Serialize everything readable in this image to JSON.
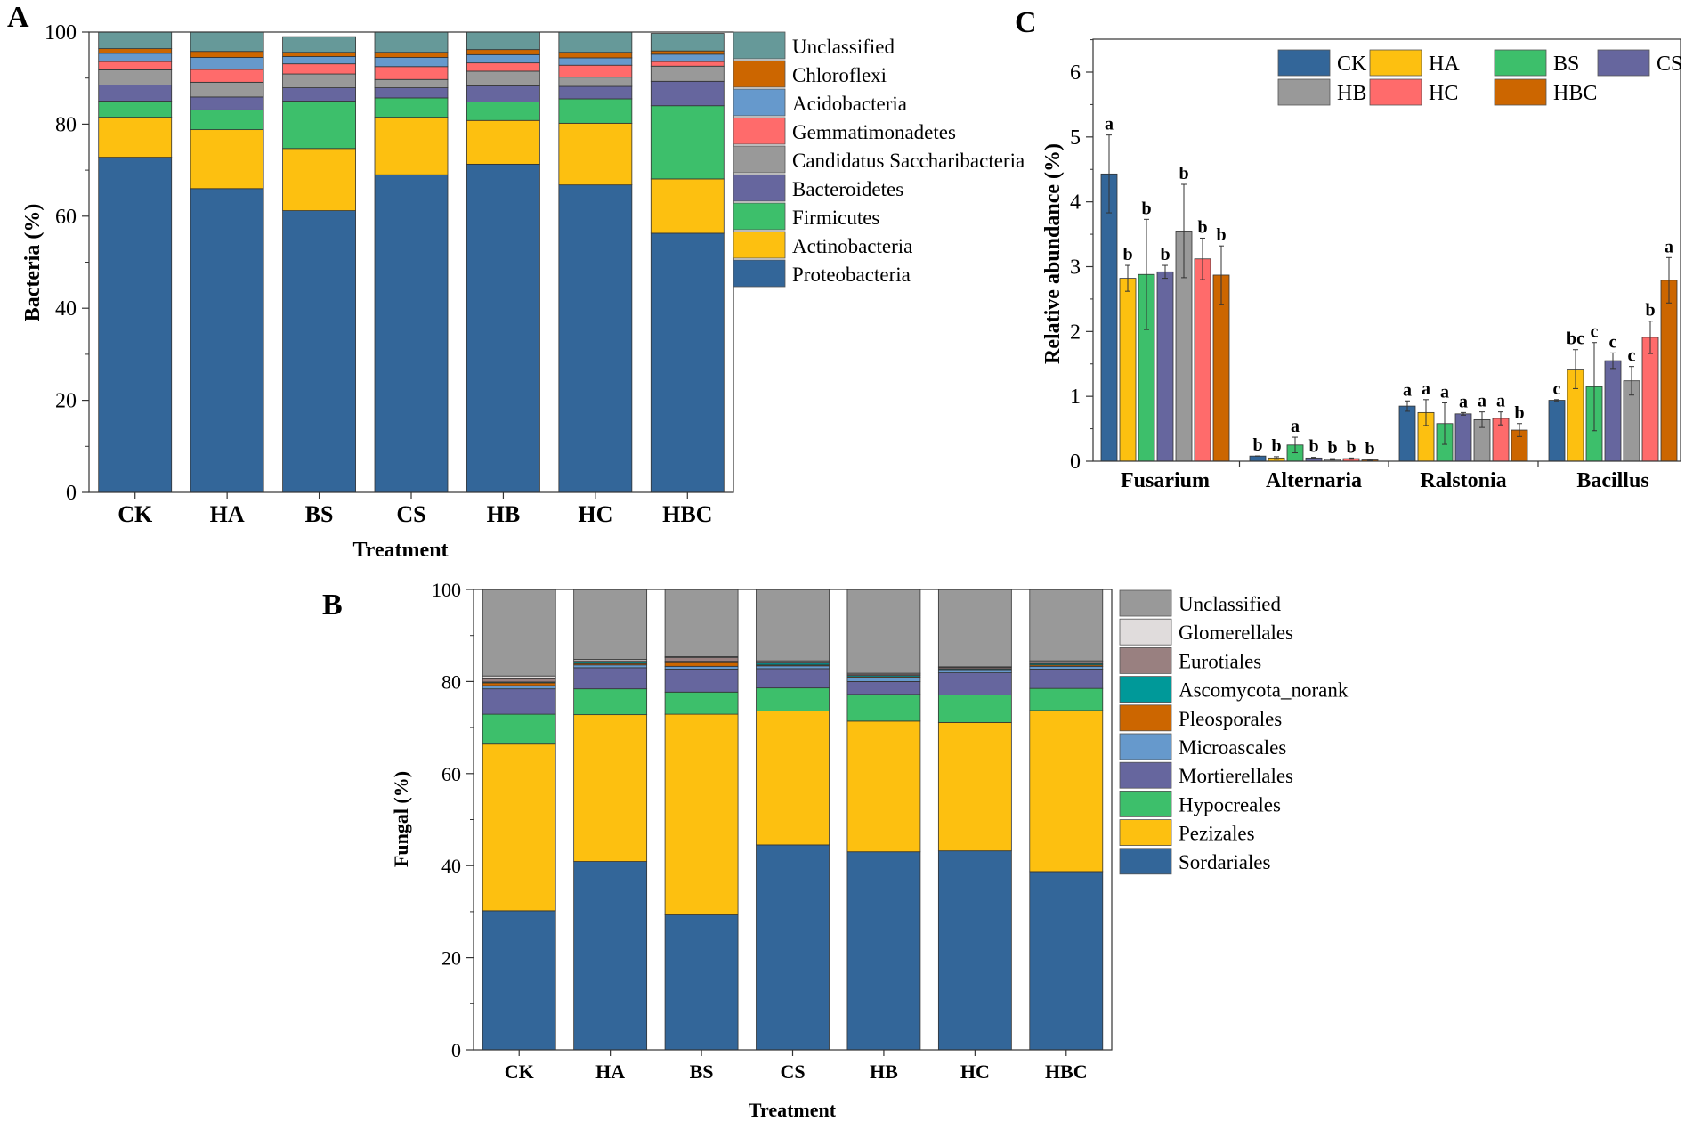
{
  "panels": {
    "A": {
      "letter": "A",
      "ylabel": "Bacteria (%)",
      "xlabel": "Treatment",
      "categories": [
        "CK",
        "HA",
        "BS",
        "CS",
        "HB",
        "HC",
        "HBC"
      ],
      "y_ticks": [
        "0",
        "20",
        "40",
        "60",
        "80",
        "100"
      ],
      "legend": [
        "Unclassified",
        "Chloroflexi",
        "Acidobacteria",
        "Gemmatimonadetes",
        "Candidatus Saccharibacteria",
        "Bacteroidetes",
        "Firmicutes",
        "Actinobacteria",
        "Proteobacteria"
      ]
    },
    "B": {
      "letter": "B",
      "ylabel": "Fungal (%)",
      "xlabel": "Treatment",
      "categories": [
        "CK",
        "HA",
        "BS",
        "CS",
        "HB",
        "HC",
        "HBC"
      ],
      "y_ticks": [
        "0",
        "20",
        "40",
        "60",
        "80",
        "100"
      ],
      "legend": [
        "Unclassified",
        "Glomerellales",
        "Eurotiales",
        "Ascomycota_norank",
        "Pleosporales",
        "Microascales",
        "Mortierellales",
        "Hypocreales",
        "Pezizales",
        "Sordariales"
      ]
    },
    "C": {
      "letter": "C",
      "ylabel": "Relative abundance (%)",
      "groups": [
        "Fusarium",
        "Alternaria",
        "Ralstonia",
        "Bacillus"
      ],
      "y_ticks": [
        "0",
        "1",
        "2",
        "3",
        "4",
        "5",
        "6"
      ],
      "legend": [
        "CK",
        "HA",
        "BS",
        "CS",
        "HB",
        "HC",
        "HBC"
      ]
    }
  },
  "chart_data": [
    {
      "type": "bar",
      "stacked": true,
      "title": "A",
      "xlabel": "Treatment",
      "ylabel": "Bacteria (%)",
      "ylim": [
        0,
        100
      ],
      "categories": [
        "CK",
        "HA",
        "BS",
        "CS",
        "HB",
        "HC",
        "HBC"
      ],
      "series": [
        {
          "name": "Proteobacteria",
          "color": "#336699",
          "values": [
            72.8,
            66.0,
            61.2,
            69.0,
            71.3,
            66.8,
            56.3
          ]
        },
        {
          "name": "Actinobacteria",
          "color": "#FDC010",
          "values": [
            8.7,
            12.8,
            13.5,
            12.5,
            9.5,
            13.4,
            11.8
          ]
        },
        {
          "name": "Firmicutes",
          "color": "#3DBF6B",
          "values": [
            3.5,
            4.3,
            10.3,
            4.2,
            4.0,
            5.3,
            15.9
          ]
        },
        {
          "name": "Bacteroidetes",
          "color": "#66669E",
          "values": [
            3.5,
            2.8,
            2.9,
            2.2,
            3.5,
            2.7,
            5.3
          ]
        },
        {
          "name": "Candidatus Saccharibacteria",
          "color": "#999999",
          "values": [
            3.3,
            3.2,
            3.0,
            1.8,
            3.2,
            2.0,
            3.3
          ]
        },
        {
          "name": "Gemmatimonadetes",
          "color": "#FF6B6B",
          "values": [
            1.8,
            2.8,
            2.2,
            2.8,
            1.8,
            2.6,
            1.0
          ]
        },
        {
          "name": "Acidobacteria",
          "color": "#6699CC",
          "values": [
            1.8,
            2.6,
            1.6,
            2.0,
            1.8,
            1.6,
            1.6
          ]
        },
        {
          "name": "Chloroflexi",
          "color": "#CC6600",
          "values": [
            1.0,
            1.3,
            0.9,
            1.1,
            1.1,
            1.2,
            0.7
          ]
        },
        {
          "name": "Unclassified",
          "color": "#669999",
          "values": [
            3.6,
            4.2,
            3.4,
            4.4,
            3.8,
            4.4,
            3.8
          ]
        }
      ]
    },
    {
      "type": "bar",
      "stacked": true,
      "title": "B",
      "xlabel": "Treatment",
      "ylabel": "Fungal (%)",
      "ylim": [
        0,
        100
      ],
      "categories": [
        "CK",
        "HA",
        "BS",
        "CS",
        "HB",
        "HC",
        "HBC"
      ],
      "series": [
        {
          "name": "Sordariales",
          "color": "#336699",
          "values": [
            30.2,
            40.9,
            29.3,
            44.5,
            43.0,
            43.2,
            38.7
          ]
        },
        {
          "name": "Pezizales",
          "color": "#FDC010",
          "values": [
            36.2,
            31.9,
            43.6,
            29.1,
            28.4,
            27.9,
            35.0
          ]
        },
        {
          "name": "Hypocreales",
          "color": "#3DBF6B",
          "values": [
            6.5,
            5.6,
            4.8,
            5.0,
            5.8,
            6.0,
            4.8
          ]
        },
        {
          "name": "Mortierellales",
          "color": "#66669E",
          "values": [
            5.5,
            4.6,
            5.0,
            4.2,
            2.8,
            4.8,
            4.2
          ]
        },
        {
          "name": "Microascales",
          "color": "#6699CC",
          "values": [
            0.7,
            0.6,
            0.6,
            0.6,
            0.8,
            0.5,
            0.6
          ]
        },
        {
          "name": "Pleosporales",
          "color": "#CC6600",
          "values": [
            0.6,
            0.3,
            0.8,
            0.2,
            0.2,
            0.2,
            0.3
          ]
        },
        {
          "name": "Ascomycota_norank",
          "color": "#009999",
          "values": [
            0.2,
            0.3,
            0.3,
            0.4,
            0.3,
            0.2,
            0.3
          ]
        },
        {
          "name": "Eurotiales",
          "color": "#998080",
          "values": [
            0.7,
            0.3,
            0.8,
            0.3,
            0.3,
            0.3,
            0.4
          ]
        },
        {
          "name": "Glomerellales",
          "color": "#E0DCDC",
          "values": [
            0.6,
            0.3,
            0.2,
            0.2,
            0.2,
            0.1,
            0.2
          ]
        },
        {
          "name": "Unclassified",
          "color": "#999999",
          "values": [
            18.8,
            15.2,
            14.6,
            15.5,
            18.2,
            16.8,
            15.5
          ]
        }
      ]
    },
    {
      "type": "bar",
      "grouped": true,
      "title": "C",
      "xlabel": "",
      "ylabel": "Relative abundance (%)",
      "ylim": [
        0,
        6.5
      ],
      "categories": [
        "Fusarium",
        "Alternaria",
        "Ralstonia",
        "Bacillus"
      ],
      "series": [
        {
          "name": "CK",
          "color": "#336699",
          "values": [
            4.43,
            0.08,
            0.85,
            0.94
          ],
          "errors": [
            0.6,
            0.0,
            0.08,
            0.01
          ],
          "letters": [
            "a",
            "b",
            "a",
            "c"
          ]
        },
        {
          "name": "HA",
          "color": "#FDC010",
          "values": [
            2.82,
            0.05,
            0.75,
            1.42
          ],
          "errors": [
            0.2,
            0.02,
            0.2,
            0.3
          ],
          "letters": [
            "b",
            "b",
            "a",
            "bc"
          ]
        },
        {
          "name": "BS",
          "color": "#3DBF6B",
          "values": [
            2.88,
            0.25,
            0.58,
            1.15
          ],
          "errors": [
            0.85,
            0.12,
            0.32,
            0.68
          ],
          "letters": [
            "b",
            "a",
            "a",
            "c"
          ]
        },
        {
          "name": "CS",
          "color": "#66669E",
          "values": [
            2.92,
            0.05,
            0.73,
            1.55
          ],
          "errors": [
            0.1,
            0.01,
            0.02,
            0.12
          ],
          "letters": [
            "b",
            "b",
            "a",
            "c"
          ]
        },
        {
          "name": "HB",
          "color": "#999999",
          "values": [
            3.55,
            0.03,
            0.64,
            1.24
          ],
          "errors": [
            0.72,
            0.01,
            0.12,
            0.22
          ],
          "letters": [
            "b",
            "b",
            "a",
            "c"
          ]
        },
        {
          "name": "HC",
          "color": "#FF6B6B",
          "values": [
            3.12,
            0.04,
            0.66,
            1.91
          ],
          "errors": [
            0.32,
            0.01,
            0.1,
            0.25
          ],
          "letters": [
            "b",
            "b",
            "a",
            "b"
          ]
        },
        {
          "name": "HBC",
          "color": "#CC6600",
          "values": [
            2.87,
            0.02,
            0.48,
            2.79
          ],
          "errors": [
            0.45,
            0.01,
            0.1,
            0.35
          ],
          "letters": [
            "b",
            "b",
            "b",
            "a"
          ]
        }
      ]
    }
  ]
}
